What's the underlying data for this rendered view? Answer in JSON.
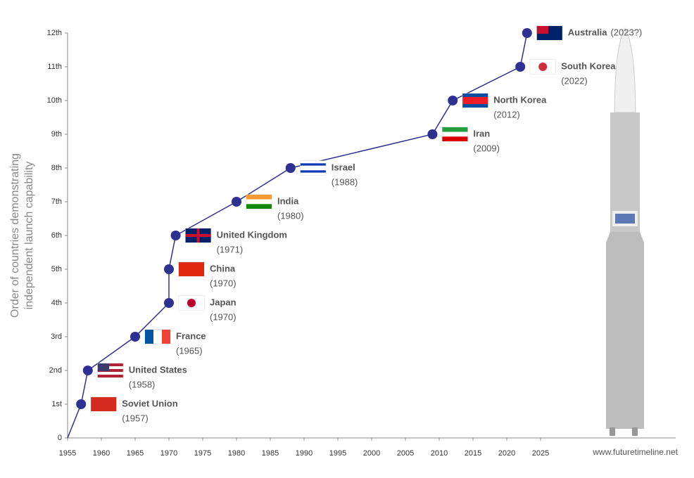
{
  "chart_data": {
    "type": "line",
    "y_axis_label": [
      "Order of countries demonstrating",
      "independent launch capability"
    ],
    "source": "www.futuretimeline.net",
    "x": [
      1957,
      1958,
      1965,
      1970,
      1970,
      1971,
      1980,
      1988,
      2009,
      2012,
      2022,
      2023
    ],
    "series": [
      {
        "color": "#2e3192",
        "values": [
          1,
          2,
          3,
          4,
          5,
          6,
          7,
          8,
          9,
          10,
          11,
          12
        ]
      }
    ],
    "point_labels": [
      "Soviet Union",
      "United States",
      "France",
      "Japan",
      "China",
      "United Kingdom",
      "India",
      "Israel",
      "Iran",
      "North Korea",
      "South Korea",
      "Australia"
    ],
    "year_labels": [
      "(1957)",
      "(1958)",
      "(1965)",
      "(1970)",
      "(1970)",
      "(1971)",
      "(1980)",
      "(1988)",
      "(2009)",
      "(2012)",
      "(2022)",
      "(2023?)"
    ],
    "xlim": [
      1955,
      2045
    ],
    "xticks": [
      1955,
      1960,
      1965,
      1970,
      1975,
      1980,
      1985,
      1990,
      1995,
      2000,
      2005,
      2010,
      2015,
      2020,
      2025
    ],
    "ylim": [
      0,
      12
    ],
    "yticks": [
      0,
      {
        "value": 1,
        "label": "1st"
      },
      {
        "value": 2,
        "label": "2nd"
      },
      {
        "value": 3,
        "label": "3rd"
      },
      {
        "value": 4,
        "label": "4th"
      },
      {
        "value": 5,
        "label": "5th"
      },
      {
        "value": 6,
        "label": "6th"
      },
      {
        "value": 7,
        "label": "7th"
      },
      {
        "value": 8,
        "label": "8th"
      },
      {
        "value": 9,
        "label": "9th"
      },
      {
        "value": 10,
        "label": "10th"
      },
      {
        "value": 11,
        "label": "11th"
      },
      {
        "value": 12,
        "label": "12th"
      }
    ]
  }
}
